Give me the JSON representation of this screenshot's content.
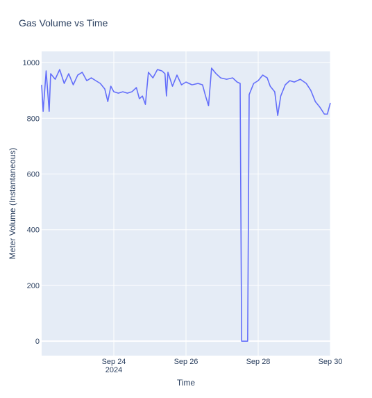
{
  "chart_data": {
    "type": "line",
    "title": "Gas Volume vs Time",
    "x_label": "Time",
    "y_label": "Meter Volume (Instantaneous)",
    "x": [
      "2024-09-22T00:00",
      "2024-09-22T01:00",
      "2024-09-22T03:00",
      "2024-09-22T05:00",
      "2024-09-22T06:00",
      "2024-09-22T09:00",
      "2024-09-22T12:00",
      "2024-09-22T15:00",
      "2024-09-22T18:00",
      "2024-09-22T21:00",
      "2024-09-23T00:00",
      "2024-09-23T03:00",
      "2024-09-23T06:00",
      "2024-09-23T09:00",
      "2024-09-23T12:00",
      "2024-09-23T15:00",
      "2024-09-23T18:00",
      "2024-09-23T20:00",
      "2024-09-23T22:00",
      "2024-09-24T00:00",
      "2024-09-24T03:00",
      "2024-09-24T06:00",
      "2024-09-24T09:00",
      "2024-09-24T12:00",
      "2024-09-24T15:00",
      "2024-09-24T17:00",
      "2024-09-24T19:00",
      "2024-09-24T21:00",
      "2024-09-24T23:00",
      "2024-09-25T02:00",
      "2024-09-25T05:00",
      "2024-09-25T08:00",
      "2024-09-25T10:00",
      "2024-09-25T11:00",
      "2024-09-25T12:00",
      "2024-09-25T15:00",
      "2024-09-25T18:00",
      "2024-09-25T21:00",
      "2024-09-26T00:00",
      "2024-09-26T04:00",
      "2024-09-26T08:00",
      "2024-09-26T11:00",
      "2024-09-26T13:00",
      "2024-09-26T15:00",
      "2024-09-26T17:00",
      "2024-09-26T20:00",
      "2024-09-26T23:00",
      "2024-09-27T03:00",
      "2024-09-27T07:00",
      "2024-09-27T10:00",
      "2024-09-27T12:00",
      "2024-09-27T13:00",
      "2024-09-27T17:00",
      "2024-09-27T18:00",
      "2024-09-27T21:00",
      "2024-09-28T00:00",
      "2024-09-28T03:00",
      "2024-09-28T06:00",
      "2024-09-28T08:00",
      "2024-09-28T11:00",
      "2024-09-28T13:00",
      "2024-09-28T15:00",
      "2024-09-28T18:00",
      "2024-09-28T21:00",
      "2024-09-29T00:00",
      "2024-09-29T04:00",
      "2024-09-29T08:00",
      "2024-09-29T11:00",
      "2024-09-29T14:00",
      "2024-09-29T17:00",
      "2024-09-29T20:00",
      "2024-09-29T22:00",
      "2024-09-30T00:00"
    ],
    "series": [
      {
        "color": "#636efa",
        "values": [
          920,
          825,
          970,
          825,
          960,
          940,
          975,
          925,
          960,
          920,
          955,
          965,
          935,
          945,
          935,
          925,
          905,
          860,
          915,
          895,
          890,
          895,
          890,
          895,
          910,
          870,
          880,
          850,
          965,
          945,
          975,
          970,
          960,
          880,
          965,
          915,
          955,
          920,
          930,
          920,
          925,
          920,
          880,
          845,
          980,
          960,
          945,
          940,
          945,
          930,
          925,
          0,
          0,
          885,
          925,
          935,
          955,
          945,
          915,
          895,
          810,
          880,
          920,
          935,
          930,
          940,
          925,
          900,
          860,
          840,
          815,
          815,
          855
        ]
      }
    ],
    "xlim": [
      "2024-09-22T00:00",
      "2024-09-30T00:00"
    ],
    "xticks": [
      {
        "value": "2024-09-24T00:00",
        "label": "Sep 24\n2024"
      },
      {
        "value": "2024-09-26T00:00",
        "label": "Sep 26"
      },
      {
        "value": "2024-09-28T00:00",
        "label": "Sep 28"
      },
      {
        "value": "2024-09-30T00:00",
        "label": "Sep 30"
      }
    ],
    "ylim": [
      -52,
      1040
    ],
    "yticks": [
      0,
      200,
      400,
      600,
      800,
      1000
    ],
    "grid": true
  }
}
